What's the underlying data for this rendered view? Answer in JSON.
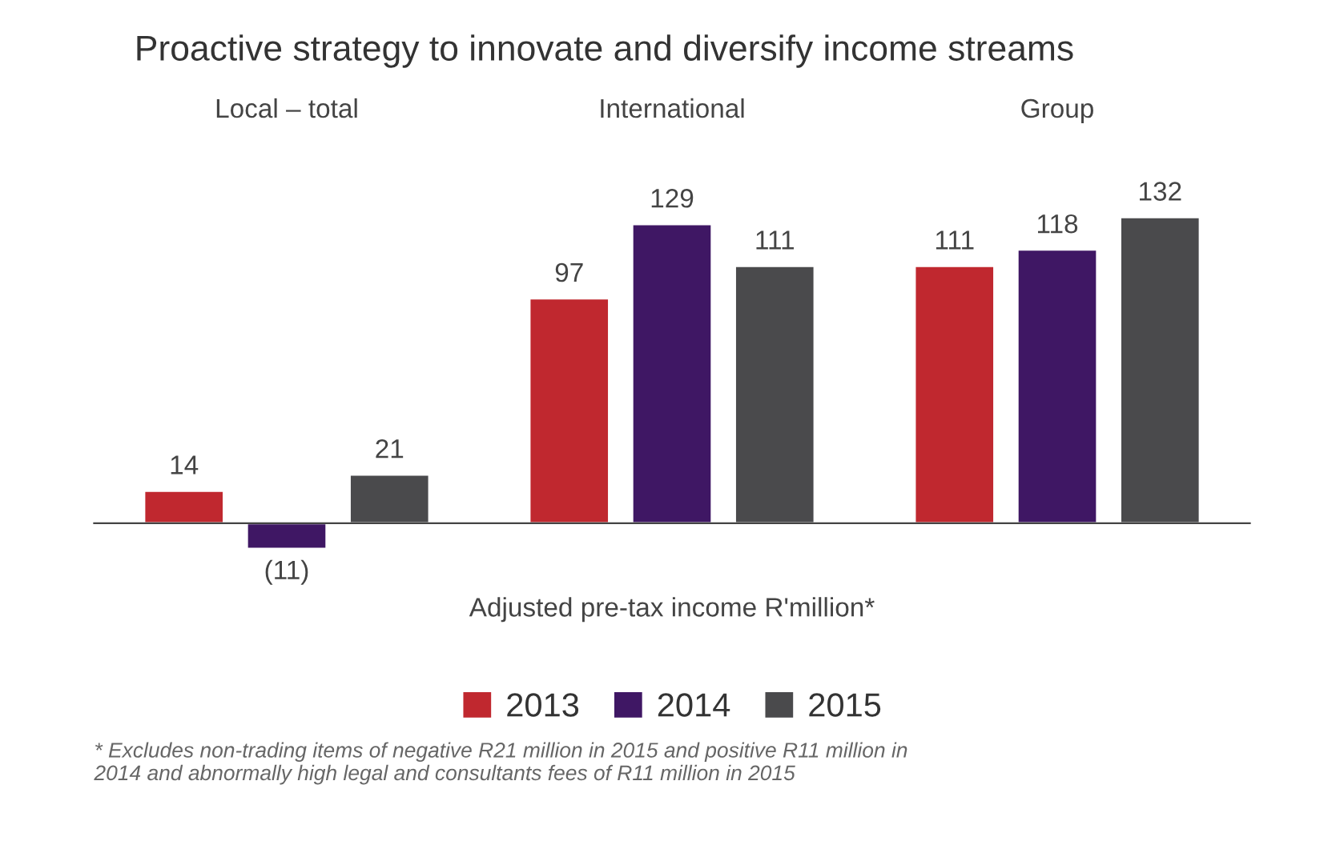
{
  "chart_data": {
    "type": "bar",
    "title": "Proactive strategy to innovate and diversify income streams",
    "categories": [
      "Local – total",
      "International",
      "Group"
    ],
    "xlabel": "Adjusted pre-tax income R'million*",
    "series": [
      {
        "name": "2013",
        "color": "#c0282f",
        "values": [
          14,
          97,
          111
        ],
        "value_labels": [
          "14",
          "97",
          "111"
        ]
      },
      {
        "name": "2014",
        "color": "#3f1764",
        "values": [
          -11,
          129,
          118
        ],
        "value_labels": [
          "(11)",
          "129",
          "118"
        ]
      },
      {
        "name": "2015",
        "color": "#4a4a4c",
        "values": [
          21,
          111,
          132
        ],
        "value_labels": [
          "21",
          "111",
          "132"
        ]
      }
    ],
    "legend": "bottom",
    "annotations": [
      "* Excludes non-trading items of negative R21 million in 2015 and positive R11 million in 2014 and abnormally high legal and consultants fees of R11 million in 2015"
    ]
  }
}
